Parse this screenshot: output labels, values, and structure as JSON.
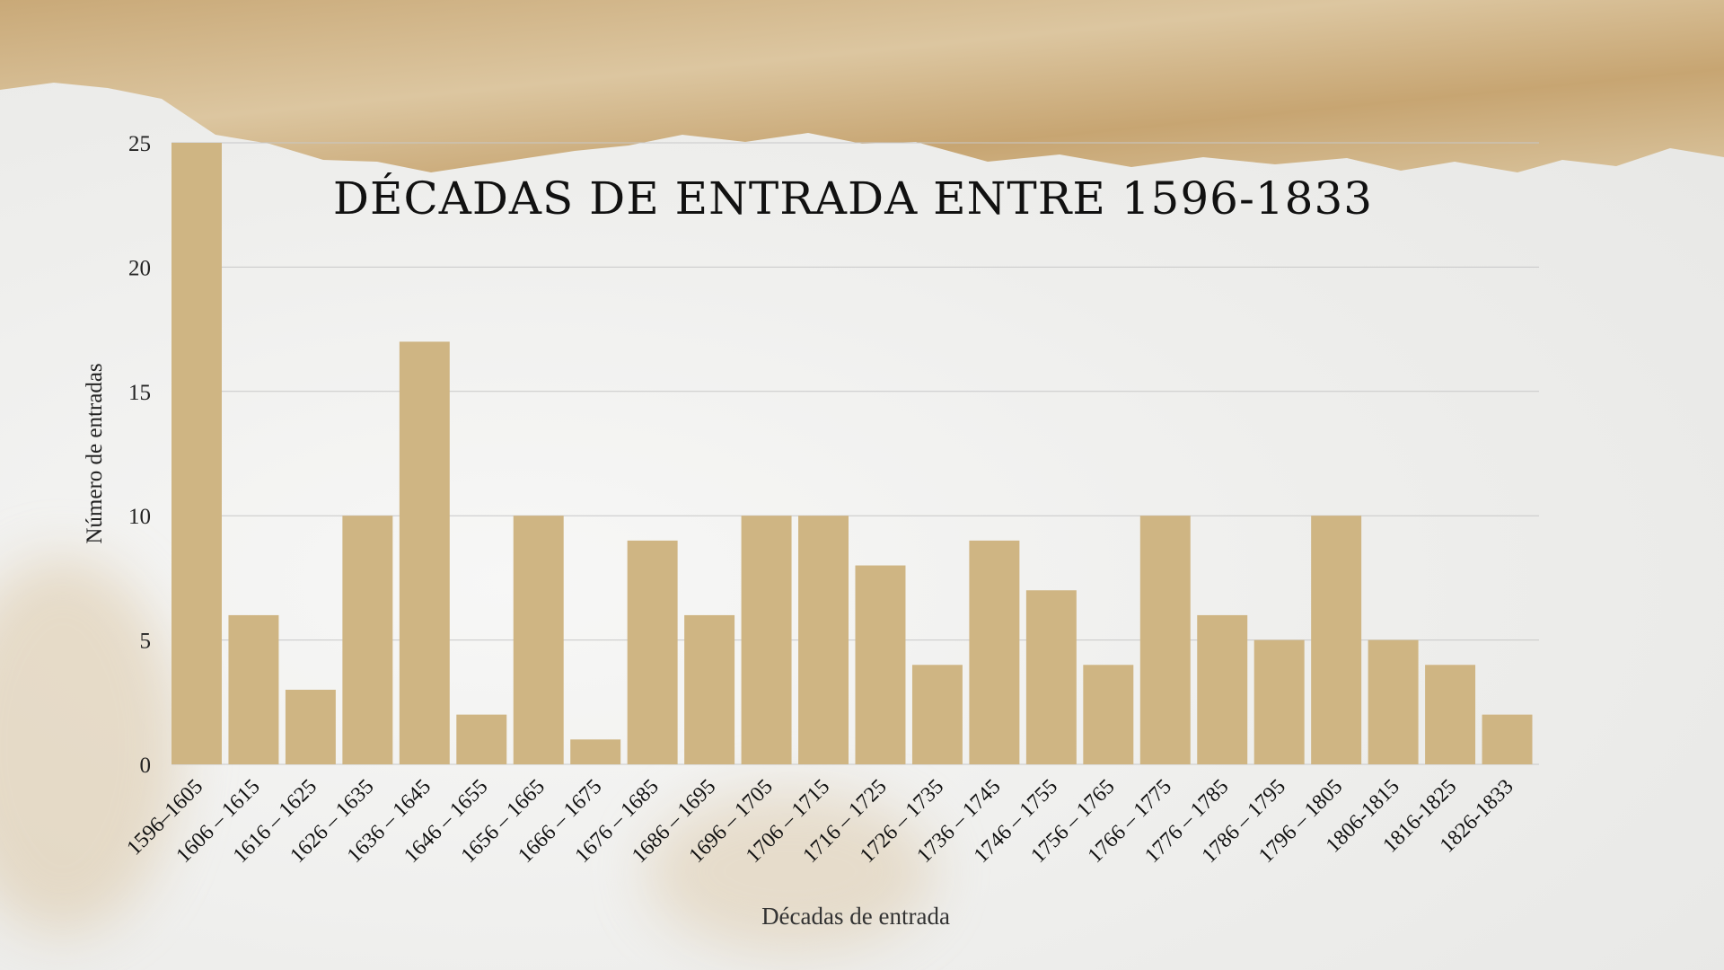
{
  "chart_data": {
    "type": "bar",
    "title": "DÉCADAS DE ENTRADA ENTRE 1596-1833",
    "xlabel": "Décadas de entrada",
    "ylabel": "Número de entradas",
    "ylim": [
      0,
      25
    ],
    "yticks": [
      0,
      5,
      10,
      15,
      20,
      25
    ],
    "grid": true,
    "bar_color": "#cfb583",
    "categories": [
      "1596–1605",
      "1606 – 1615",
      "1616 – 1625",
      "1626 – 1635",
      "1636 – 1645",
      "1646 – 1655",
      "1656 – 1665",
      "1666 – 1675",
      "1676 – 1685",
      "1686 – 1695",
      "1696 – 1705",
      "1706 – 1715",
      "1716 – 1725",
      "1726 – 1735",
      "1736 – 1745",
      "1746 – 1755",
      "1756 – 1765",
      "1766 – 1775",
      "1776 – 1785",
      "1786 – 1795",
      "1796 – 1805",
      "1806-1815",
      "1816-1825",
      "1826-1833"
    ],
    "values": [
      25,
      6,
      3,
      10,
      17,
      2,
      10,
      1,
      9,
      6,
      10,
      10,
      8,
      4,
      9,
      7,
      4,
      10,
      6,
      5,
      10,
      5,
      4,
      2
    ]
  }
}
